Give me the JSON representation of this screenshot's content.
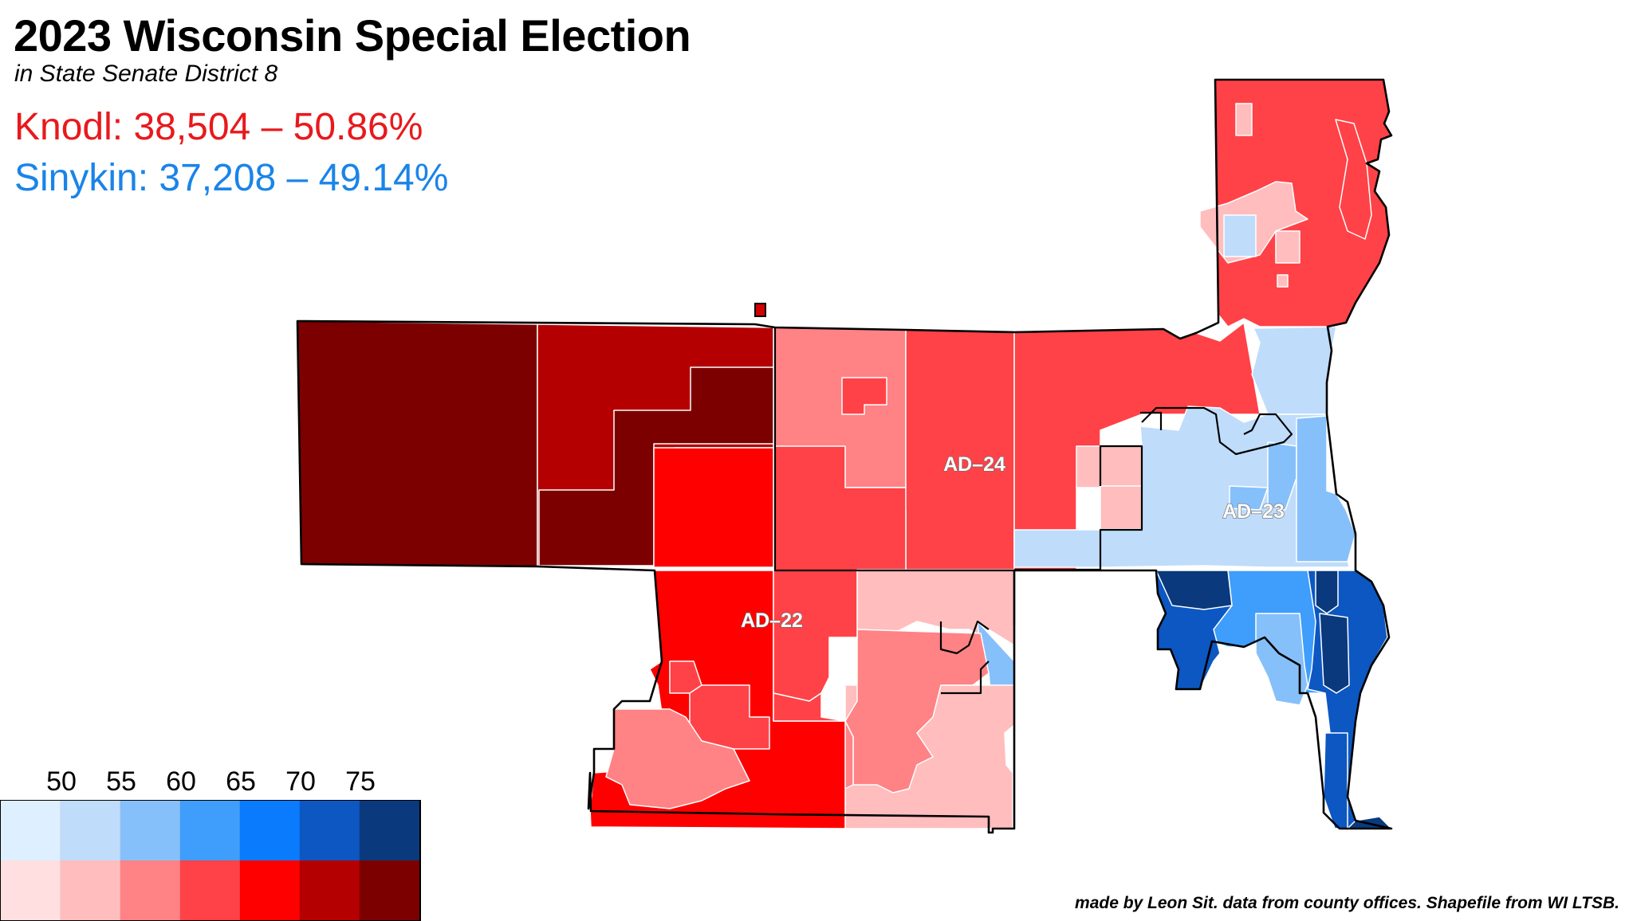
{
  "title": "2023 Wisconsin Special Election",
  "subtitle": "in State Senate District 8",
  "results": {
    "rep": {
      "name": "Knodl",
      "votes": "38,504",
      "pct": "50.86%",
      "color": "#e8191d",
      "line": "Knodl: 38,504 – 50.86%"
    },
    "dem": {
      "name": "Sinykin",
      "votes": "37,208",
      "pct": "49.14%",
      "color": "#1a84e8",
      "line": "Sinykin: 37,208 – 49.14%"
    }
  },
  "legend": {
    "labels": [
      "50",
      "55",
      "60",
      "65",
      "70",
      "75"
    ],
    "dem_colors": [
      "#deefff",
      "#bfdcfb",
      "#86c0fb",
      "#3f9dfb",
      "#0a7bfd",
      "#0c57c2",
      "#0a3a7d"
    ],
    "rep_colors": [
      "#ffdfe0",
      "#ffbdbe",
      "#ff8285",
      "#ff4247",
      "#ff0000",
      "#b40000",
      "#7d0000"
    ]
  },
  "districts": [
    {
      "id": "ad-22",
      "label": "AD–22"
    },
    {
      "id": "ad-23",
      "label": "AD–23"
    },
    {
      "id": "ad-24",
      "label": "AD–24"
    }
  ],
  "credit": "made by Leon Sit. data from county offices. Shapefile from WI LTSB."
}
